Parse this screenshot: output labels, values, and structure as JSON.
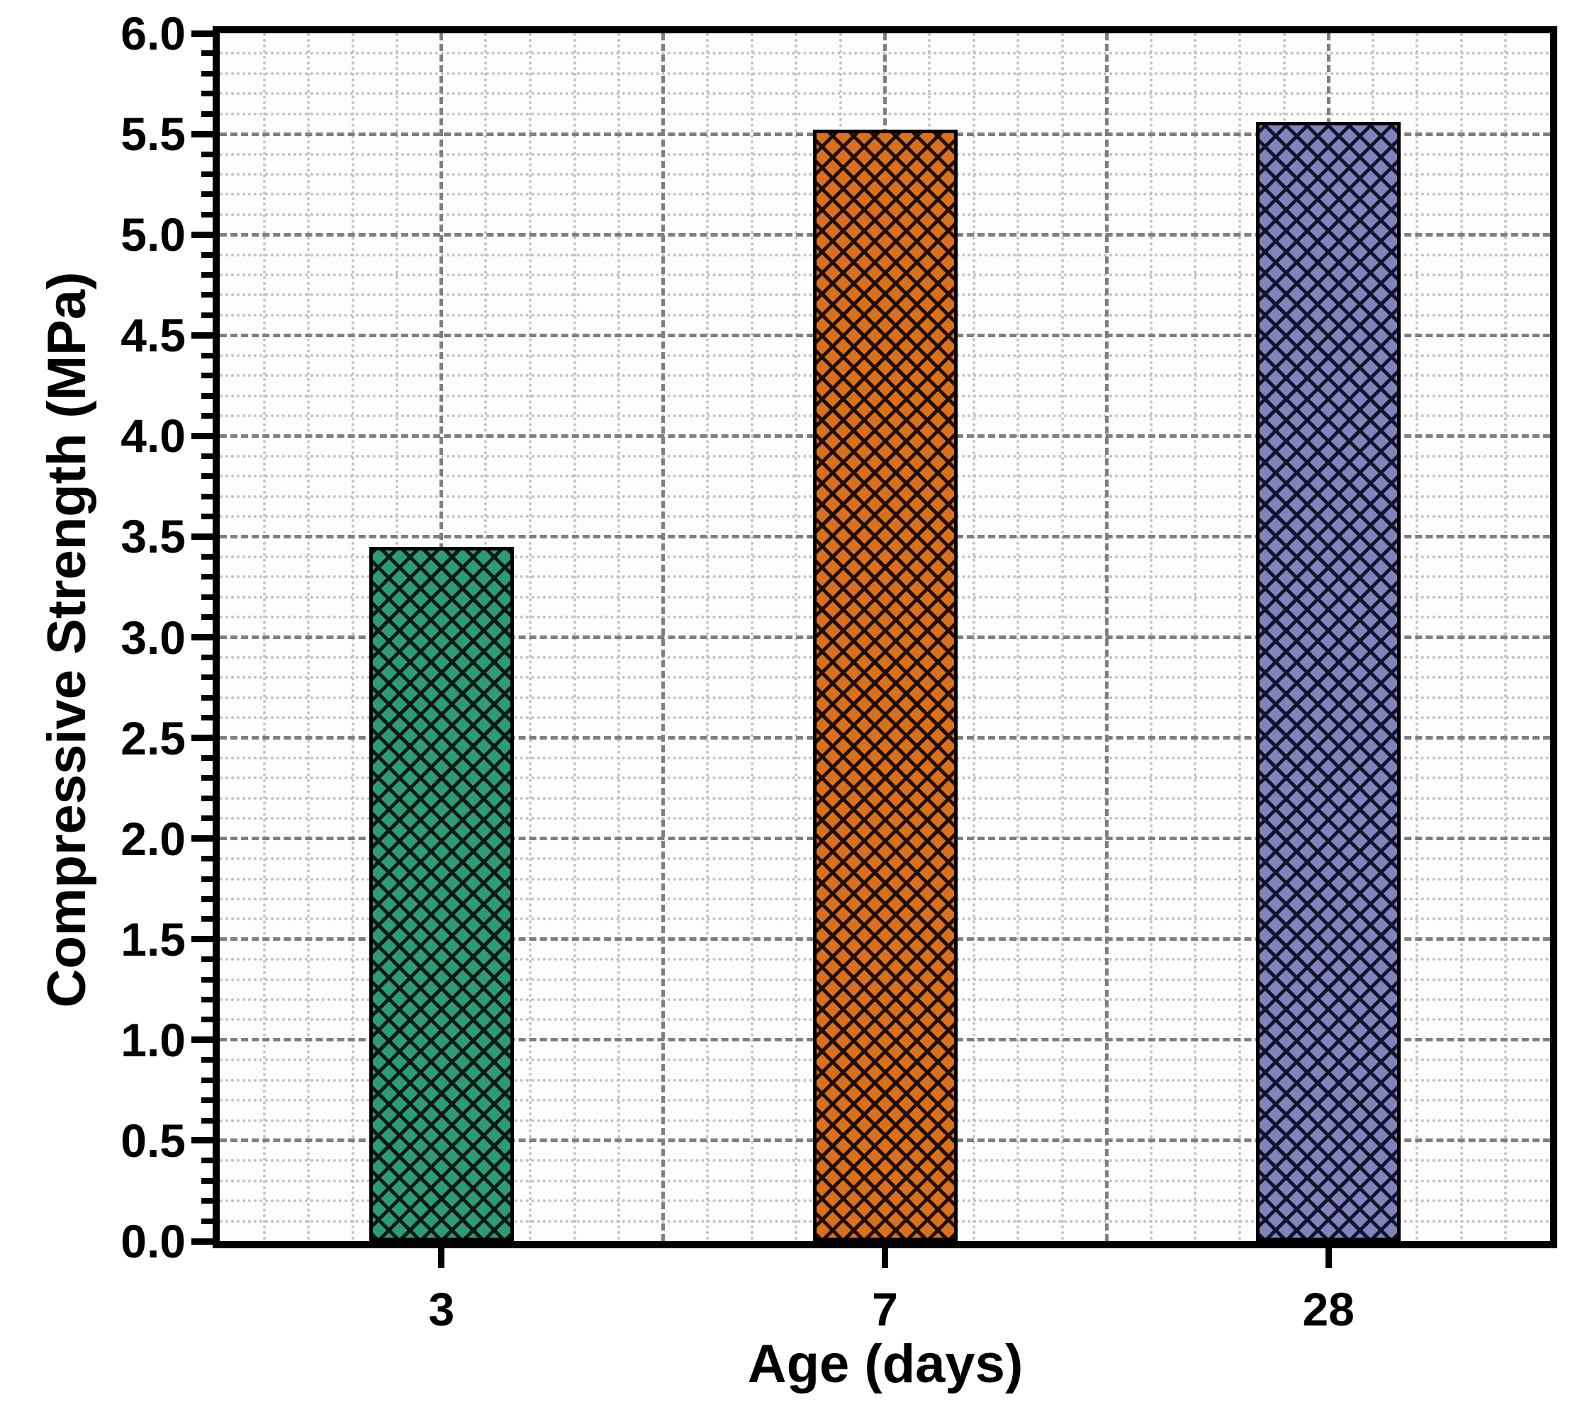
{
  "chart_data": {
    "type": "bar",
    "title": "",
    "xlabel": "Age (days)",
    "ylabel": "Compressive Strength (MPa)",
    "categories": [
      "3",
      "7",
      "28"
    ],
    "values": [
      3.45,
      5.52,
      5.56
    ],
    "series": [
      {
        "category": "3",
        "value": 3.45,
        "fill": "#2d9b78",
        "hatch_color": "#0a1a12"
      },
      {
        "category": "7",
        "value": 5.52,
        "fill": "#d8701d",
        "hatch_color": "#200d01"
      },
      {
        "category": "28",
        "value": 5.56,
        "fill": "#8084ba",
        "hatch_color": "#13132e"
      }
    ],
    "hatch_style": "diagonal-crosshatch",
    "ylim": [
      0.0,
      6.0
    ],
    "y_major_step": 0.5,
    "y_minor_step": 0.1,
    "y_tick_labels": [
      "0.0",
      "0.5",
      "1.0",
      "1.5",
      "2.0",
      "2.5",
      "3.0",
      "3.5",
      "4.0",
      "4.5",
      "5.0",
      "5.5",
      "6.0"
    ],
    "x_tick_labels": [
      "3",
      "7",
      "28"
    ],
    "grid": {
      "major_color": "#7f7f7f",
      "minor_color": "#c3c3c3",
      "major_style": "dashed",
      "minor_style": "dotted"
    },
    "axis_color": "#000000",
    "plot_background": "#fdfdfd",
    "legend": null
  }
}
